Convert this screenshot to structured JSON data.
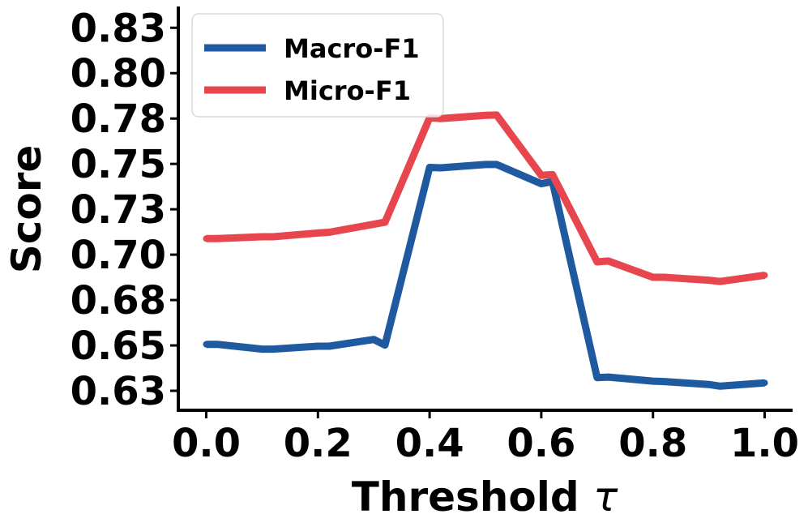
{
  "chart_data": {
    "type": "line",
    "xlabel": "Threshold",
    "xlabel_symbol": "τ",
    "ylabel": "Score",
    "xlim": [
      -0.05,
      1.05
    ],
    "ylim": [
      0.6195,
      0.8375
    ],
    "x_ticks": [
      0.0,
      0.2,
      0.4,
      0.6,
      0.8,
      1.0
    ],
    "x_tick_labels": [
      "0.0",
      "0.2",
      "0.4",
      "0.6",
      "0.8",
      "1.0"
    ],
    "y_ticks": [
      0.63,
      0.6545,
      0.679,
      0.7035,
      0.728,
      0.7525,
      0.777,
      0.8015,
      0.826
    ],
    "y_tick_labels": [
      "0.63",
      "0.65",
      "0.68",
      "0.70",
      "0.73",
      "0.75",
      "0.78",
      "0.80",
      "0.83"
    ],
    "grid": false,
    "legend_position": "top-left",
    "x": [
      0.0,
      0.02,
      0.1,
      0.12,
      0.2,
      0.22,
      0.3,
      0.32,
      0.4,
      0.42,
      0.5,
      0.52,
      0.6,
      0.62,
      0.7,
      0.72,
      0.8,
      0.82,
      0.9,
      0.92,
      1.0
    ],
    "series": [
      {
        "name": "Macro-F1",
        "color": "#1f5aa0",
        "values": [
          0.6551,
          0.6551,
          0.6525,
          0.6525,
          0.6541,
          0.6541,
          0.6577,
          0.6547,
          0.7506,
          0.7504,
          0.7522,
          0.7522,
          0.7418,
          0.743,
          0.6371,
          0.6374,
          0.6352,
          0.635,
          0.6334,
          0.6325,
          0.6343
        ]
      },
      {
        "name": "Micro-F1",
        "color": "#e8464f",
        "values": [
          0.7122,
          0.7122,
          0.7132,
          0.7132,
          0.7152,
          0.7156,
          0.7199,
          0.721,
          0.7774,
          0.777,
          0.7787,
          0.7789,
          0.7463,
          0.7467,
          0.6996,
          0.7001,
          0.6913,
          0.6913,
          0.6897,
          0.689,
          0.6924
        ]
      }
    ]
  }
}
